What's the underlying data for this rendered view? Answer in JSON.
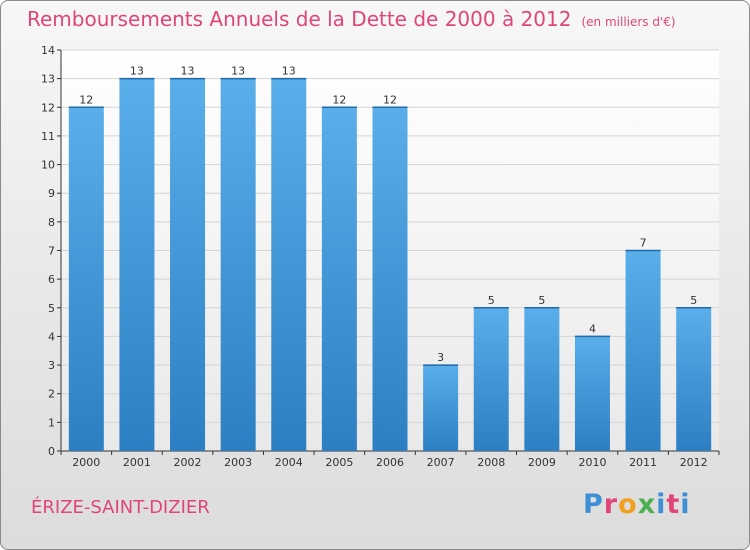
{
  "title": "Remboursements Annuels de la Dette de 2000 à 2012",
  "unit": "(en milliers d'€)",
  "city": "ÉRIZE-SAINT-DIZIER",
  "logo": {
    "letters": [
      "P",
      "r",
      "o",
      "x",
      "i",
      "t",
      "i"
    ],
    "colors": [
      "#3d8fd6",
      "#e0457a",
      "#f0a020",
      "#4caf50",
      "#3d8fd6",
      "#e0457a",
      "#3d8fd6"
    ]
  },
  "colors": {
    "bar": "#4da3e0",
    "text_accent": "#e0457a"
  },
  "chart_data": {
    "type": "bar",
    "title": "Remboursements Annuels de la Dette de 2000 à 2012",
    "categories": [
      "2000",
      "2001",
      "2002",
      "2003",
      "2004",
      "2005",
      "2006",
      "2007",
      "2008",
      "2009",
      "2010",
      "2011",
      "2012"
    ],
    "values": [
      12,
      13,
      13,
      13,
      13,
      12,
      12,
      3,
      5,
      5,
      4,
      7,
      5
    ],
    "data_labels": [
      "12",
      "13",
      "13",
      "13",
      "13",
      "12",
      "12",
      "3",
      "5",
      "5",
      "4",
      "7",
      "5"
    ],
    "yticks": [
      "0",
      "1",
      "2",
      "3",
      "4",
      "5",
      "6",
      "7",
      "8",
      "9",
      "10",
      "11",
      "12",
      "13",
      "14"
    ],
    "ylim": [
      0,
      14
    ],
    "grid": true
  }
}
